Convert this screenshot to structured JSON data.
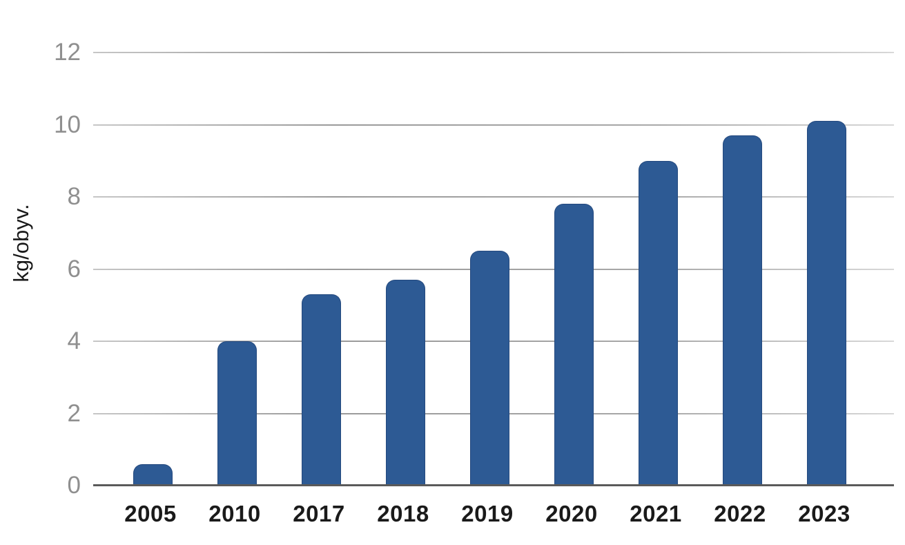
{
  "page": {
    "background": "#ffffff"
  },
  "chart_data": {
    "type": "bar",
    "categories": [
      "2005",
      "2010",
      "2017",
      "2018",
      "2019",
      "2020",
      "2021",
      "2022",
      "2023"
    ],
    "values": [
      0.6,
      4.0,
      5.3,
      5.7,
      6.5,
      7.8,
      9.0,
      9.7,
      10.1
    ],
    "title": "",
    "xlabel": "",
    "ylabel": "kg/obyv.",
    "ylim": [
      0,
      12
    ],
    "yticks": [
      0,
      2,
      4,
      6,
      8,
      10,
      12
    ],
    "grid": true,
    "legend": false,
    "colors": {
      "bar_fill": "#2d5a94",
      "bar_border": "#24497e",
      "gridline": "#a8a8a8",
      "axis_line": "#5a5a5a",
      "y_tick_label": "#8f8f8f",
      "x_tick_label": "#1a1a1a",
      "y_axis_label": "#1a1a1a"
    }
  }
}
